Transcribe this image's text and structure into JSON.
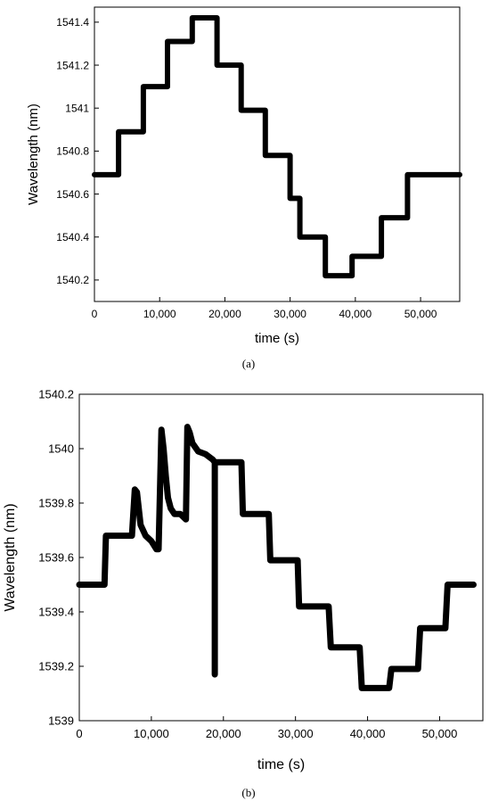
{
  "figure": {
    "panel_a_caption": "(a)",
    "panel_b_caption": "(b)"
  },
  "chart_data": [
    {
      "type": "line",
      "panel": "(a)",
      "title": "",
      "xlabel": "time (s)",
      "ylabel": "Wavelength (nm)",
      "xlim": [
        0,
        56000
      ],
      "ylim": [
        1540.1,
        1541.47
      ],
      "x_ticks": [
        0,
        10000,
        20000,
        30000,
        40000,
        50000
      ],
      "x_tick_labels": [
        "0",
        "10,000",
        "20,000",
        "30,000",
        "40,000",
        "50,000"
      ],
      "y_ticks": [
        1540.2,
        1540.4,
        1540.6,
        1540.8,
        1541.0,
        1541.2,
        1541.4
      ],
      "y_tick_labels": [
        "1540.2",
        "1540.4",
        "1540.6",
        "1540.8",
        "1541",
        "1541.2",
        "1541.4"
      ],
      "grid": false,
      "color": "#000000",
      "x": [
        0,
        3700,
        3700,
        7500,
        7500,
        11200,
        11200,
        15000,
        15000,
        18800,
        18800,
        22500,
        22500,
        26200,
        26200,
        30000,
        30000,
        31500,
        31500,
        35400,
        35400,
        39500,
        39500,
        44000,
        44000,
        48000,
        48000,
        52000,
        52000,
        56000
      ],
      "y": [
        1540.69,
        1540.69,
        1540.89,
        1540.89,
        1541.1,
        1541.1,
        1541.31,
        1541.31,
        1541.42,
        1541.42,
        1541.2,
        1541.2,
        1540.99,
        1540.99,
        1540.78,
        1540.78,
        1540.58,
        1540.58,
        1540.4,
        1540.4,
        1540.22,
        1540.22,
        1540.31,
        1540.31,
        1540.49,
        1540.49,
        1540.69,
        1540.69,
        1540.69,
        1540.69
      ]
    },
    {
      "type": "line",
      "panel": "(b)",
      "title": "",
      "xlabel": "time (s)",
      "ylabel": "Wavelength (nm)",
      "xlim": [
        0,
        56000
      ],
      "ylim": [
        1539.0,
        1540.2
      ],
      "x_ticks": [
        0,
        10000,
        20000,
        30000,
        40000,
        50000
      ],
      "x_tick_labels": [
        "0",
        "10,000",
        "20,000",
        "30,000",
        "40,000",
        "50,000"
      ],
      "y_ticks": [
        1539.0,
        1539.2,
        1539.4,
        1539.6,
        1539.8,
        1540.0,
        1540.2
      ],
      "y_tick_labels": [
        "1539",
        "1539.2",
        "1539.4",
        "1539.6",
        "1539.8",
        "1540",
        "1540.2"
      ],
      "grid": false,
      "color": "#000000",
      "x": [
        0,
        3500,
        3700,
        7300,
        7700,
        8000,
        8500,
        9200,
        10000,
        10700,
        11000,
        11400,
        11700,
        12000,
        12300,
        12700,
        13200,
        14000,
        14800,
        15000,
        15300,
        15700,
        16500,
        17500,
        18500,
        18800,
        18800,
        18800,
        19000,
        22500,
        22700,
        26300,
        26500,
        30300,
        30500,
        34600,
        34900,
        38900,
        39200,
        43000,
        43300,
        47000,
        47300,
        50800,
        51100,
        54700
      ],
      "y": [
        1539.5,
        1539.5,
        1539.68,
        1539.68,
        1539.85,
        1539.84,
        1539.72,
        1539.68,
        1539.66,
        1539.63,
        1539.63,
        1540.07,
        1540.0,
        1539.9,
        1539.82,
        1539.78,
        1539.76,
        1539.76,
        1539.74,
        1540.08,
        1540.06,
        1540.02,
        1539.99,
        1539.98,
        1539.96,
        1539.95,
        1539.17,
        1539.95,
        1539.95,
        1539.95,
        1539.76,
        1539.76,
        1539.59,
        1539.59,
        1539.42,
        1539.42,
        1539.27,
        1539.27,
        1539.12,
        1539.12,
        1539.19,
        1539.19,
        1539.34,
        1539.34,
        1539.5,
        1539.5
      ]
    }
  ]
}
